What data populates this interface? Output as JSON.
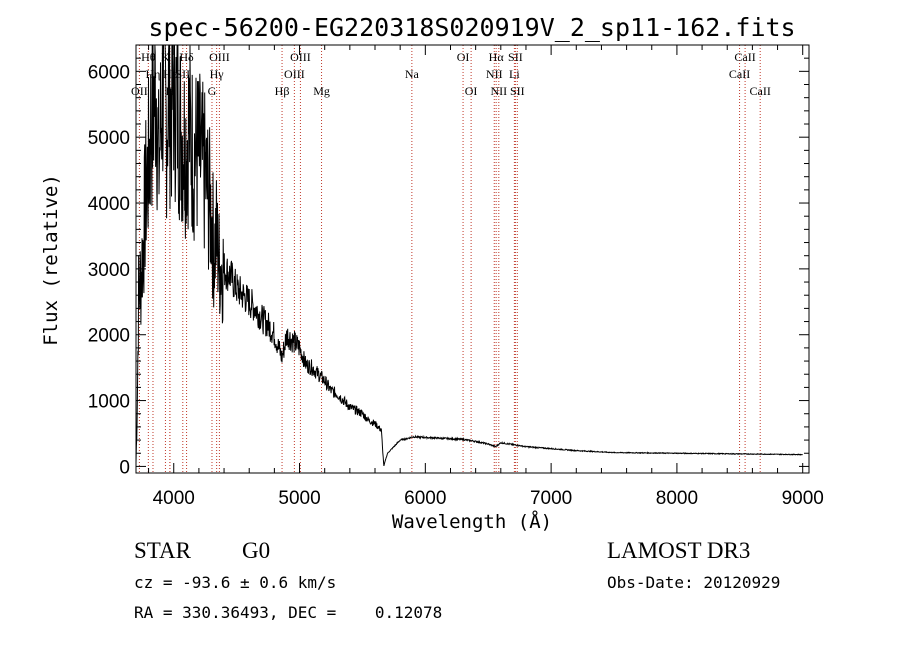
{
  "chart_data": {
    "type": "line",
    "title": "spec-56200-EG220318S020919V_2_sp11-162.fits",
    "xlabel": "Wavelength (Å)",
    "ylabel": "Flux (relative)",
    "xlim": [
      3700,
      9050
    ],
    "ylim": [
      -100,
      6400
    ],
    "xticks": [
      4000,
      5000,
      6000,
      7000,
      8000,
      9000
    ],
    "yticks": [
      0,
      1000,
      2000,
      3000,
      4000,
      5000,
      6000
    ],
    "series": [
      {
        "name": "flux",
        "x": [
          3700,
          3710,
          3720,
          3740,
          3760,
          3780,
          3800,
          3820,
          3840,
          3860,
          3880,
          3900,
          3920,
          3940,
          3960,
          3980,
          4000,
          4020,
          4040,
          4060,
          4080,
          4100,
          4120,
          4150,
          4200,
          4250,
          4300,
          4320,
          4340,
          4360,
          4400,
          4450,
          4500,
          4550,
          4600,
          4650,
          4700,
          4750,
          4800,
          4860,
          4900,
          4950,
          5000,
          5050,
          5100,
          5150,
          5200,
          5250,
          5300,
          5350,
          5400,
          5450,
          5500,
          5550,
          5600,
          5650,
          5670,
          5680,
          5700,
          5750,
          5800,
          5850,
          5900,
          6000,
          6100,
          6200,
          6300,
          6400,
          6500,
          6560,
          6600,
          6700,
          6800,
          7000,
          7200,
          7500,
          8000,
          8500,
          9000
        ],
        "y": [
          50,
          900,
          2600,
          2900,
          3500,
          4200,
          4600,
          5200,
          5500,
          5900,
          4500,
          5300,
          6000,
          5200,
          5700,
          5400,
          5800,
          5500,
          5300,
          5100,
          5000,
          4900,
          5200,
          4800,
          4700,
          4400,
          3800,
          3300,
          3500,
          3100,
          3000,
          2900,
          2700,
          2600,
          2500,
          2400,
          2250,
          2150,
          2000,
          1650,
          2000,
          1900,
          1800,
          1550,
          1500,
          1400,
          1300,
          1150,
          1100,
          1000,
          900,
          850,
          800,
          700,
          650,
          550,
          0,
          80,
          200,
          300,
          400,
          420,
          450,
          440,
          430,
          420,
          410,
          380,
          340,
          300,
          360,
          330,
          300,
          270,
          240,
          210,
          200,
          190,
          180
        ]
      }
    ],
    "lines": [
      {
        "label": "Hθ",
        "x": 3798,
        "row": 1
      },
      {
        "label": "OII",
        "x": 3727,
        "row": 3
      },
      {
        "label": "Hη",
        "x": 3835,
        "row": 2
      },
      {
        "label": "K",
        "x": 3934,
        "row": 1
      },
      {
        "label": "Hε",
        "x": 3970,
        "row": 2
      },
      {
        "label": "H",
        "x": 3969,
        "row": 3
      },
      {
        "label": "Hδ",
        "x": 4102,
        "row": 1
      },
      {
        "label": "SII",
        "x": 4072,
        "row": 2
      },
      {
        "label": "OIII",
        "x": 4363,
        "row": 1
      },
      {
        "label": "Hγ",
        "x": 4341,
        "row": 2
      },
      {
        "label": "G",
        "x": 4304,
        "row": 3
      },
      {
        "label": "OIII",
        "x": 5007,
        "row": 1
      },
      {
        "label": "OIII",
        "x": 4959,
        "row": 2
      },
      {
        "label": "Hβ",
        "x": 4861,
        "row": 3
      },
      {
        "label": "Mg",
        "x": 5175,
        "row": 3
      },
      {
        "label": "Na",
        "x": 5893,
        "row": 2
      },
      {
        "label": "OI",
        "x": 6300,
        "row": 1
      },
      {
        "label": "OI",
        "x": 6364,
        "row": 3
      },
      {
        "label": "Hα",
        "x": 6563,
        "row": 1
      },
      {
        "label": "SII",
        "x": 6716,
        "row": 1
      },
      {
        "label": "NII",
        "x": 6548,
        "row": 2
      },
      {
        "label": "Li",
        "x": 6708,
        "row": 2
      },
      {
        "label": "NII",
        "x": 6584,
        "row": 3
      },
      {
        "label": "SII",
        "x": 6731,
        "row": 3
      },
      {
        "label": "CaII",
        "x": 8542,
        "row": 1
      },
      {
        "label": "CaII",
        "x": 8498,
        "row": 2
      },
      {
        "label": "CaII",
        "x": 8662,
        "row": 3
      }
    ]
  },
  "info": {
    "object_class": "STAR",
    "subclass": "G0",
    "survey": "LAMOST DR3",
    "cz": "cz = -93.6 ± 0.6 km/s",
    "obs_date": "Obs-Date: 20120929",
    "coords": "RA = 330.36493, DEC =    0.12078"
  },
  "colors": {
    "line_marker": "#c0392b",
    "spectrum": "#000000"
  }
}
